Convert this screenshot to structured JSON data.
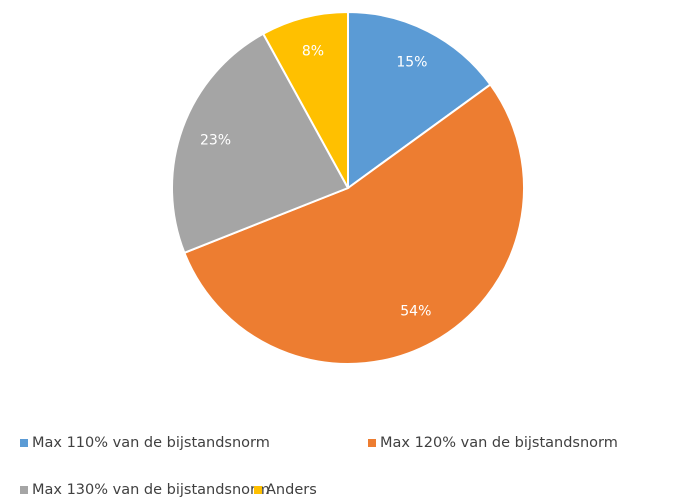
{
  "chart_data": {
    "type": "pie",
    "categories": [
      "Max 110% van de bijstandsnorm",
      "Max 120% van de bijstandsnorm",
      "Max 130% van de bijstandsnorm",
      "Anders"
    ],
    "values": [
      15,
      54,
      23,
      8
    ],
    "value_labels": [
      "15%",
      "54%",
      "23%",
      "8%"
    ],
    "colors": [
      "#5b9bd5",
      "#ed7d31",
      "#a5a5a5",
      "#ffc000"
    ],
    "legend": "bottom"
  }
}
